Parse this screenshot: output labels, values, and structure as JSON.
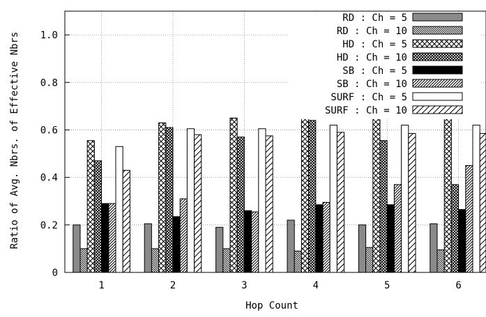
{
  "chart_data": {
    "type": "bar",
    "xlabel": "Hop Count",
    "ylabel": "Ratio of Avg. Nbrs. of Effective Nbrs",
    "categories": [
      "1",
      "2",
      "3",
      "4",
      "5",
      "6"
    ],
    "ylim": [
      0,
      1.1
    ],
    "yticks": [
      0,
      0.2,
      0.4,
      0.6,
      0.8,
      1.0
    ],
    "ytick_labels": [
      "0",
      "0.2",
      "0.4",
      "0.6",
      "0.8",
      "1.0"
    ],
    "grid": true,
    "legend_position": "top-right",
    "series": [
      {
        "name": "RD : Ch = 5",
        "pattern": "solid-gray",
        "values": [
          0.2,
          0.205,
          0.19,
          0.22,
          0.2,
          0.205
        ]
      },
      {
        "name": "RD : Ch = 10",
        "pattern": "dense-backslash-hatch",
        "values": [
          0.1,
          0.1,
          0.1,
          0.09,
          0.105,
          0.095
        ]
      },
      {
        "name": "HD : Ch = 5",
        "pattern": "crosshatch-open",
        "values": [
          0.555,
          0.63,
          0.65,
          0.66,
          0.665,
          0.7
        ]
      },
      {
        "name": "HD : Ch = 10",
        "pattern": "crosshatch-dense",
        "values": [
          0.47,
          0.61,
          0.57,
          0.64,
          0.555,
          0.37
        ]
      },
      {
        "name": "SB : Ch = 5",
        "pattern": "solid-black",
        "values": [
          0.29,
          0.235,
          0.26,
          0.285,
          0.285,
          0.265
        ]
      },
      {
        "name": "SB : Ch = 10",
        "pattern": "slash-hatch",
        "values": [
          0.29,
          0.31,
          0.255,
          0.295,
          0.37,
          0.45
        ]
      },
      {
        "name": "SURF : Ch = 5",
        "pattern": "solid-white",
        "values": [
          0.53,
          0.605,
          0.605,
          0.62,
          0.62,
          0.62
        ]
      },
      {
        "name": "SURF : Ch = 10",
        "pattern": "wide-slash-hatch",
        "values": [
          0.43,
          0.58,
          0.575,
          0.59,
          0.585,
          0.585
        ]
      }
    ]
  }
}
